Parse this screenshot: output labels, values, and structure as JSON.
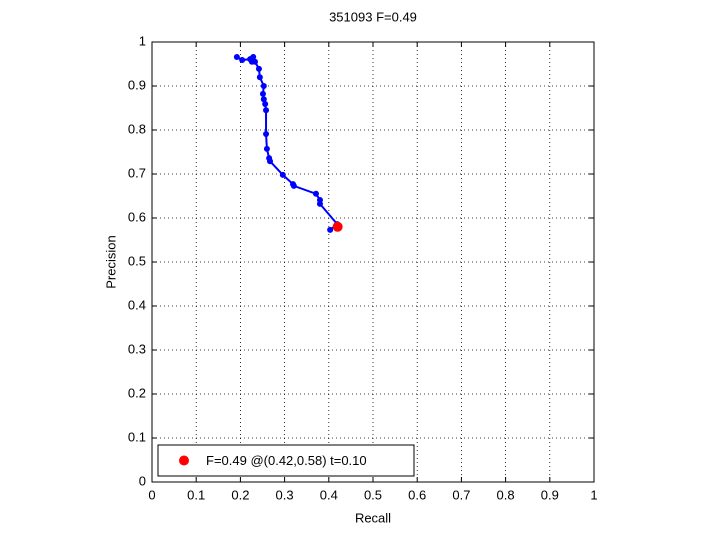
{
  "chart_data": {
    "type": "line",
    "title": "351093 F=0.49",
    "xlabel": "Recall",
    "ylabel": "Precision",
    "xlim": [
      0,
      1
    ],
    "ylim": [
      0,
      1
    ],
    "xticks": [
      0,
      0.1,
      0.2,
      0.3,
      0.4,
      0.5,
      0.6,
      0.7,
      0.8,
      0.9,
      1
    ],
    "yticks": [
      0,
      0.1,
      0.2,
      0.3,
      0.4,
      0.5,
      0.6,
      0.7,
      0.8,
      0.9,
      1
    ],
    "grid": true,
    "legend": "lower left",
    "series": [
      {
        "color": "#0000ff",
        "x": [
          0.192,
          0.204,
          0.222,
          0.229,
          0.226,
          0.233,
          0.242,
          0.244,
          0.253,
          0.251,
          0.253,
          0.256,
          0.258,
          0.258,
          0.26,
          0.265,
          0.267,
          0.296,
          0.319,
          0.321,
          0.371,
          0.38,
          0.38,
          0.419,
          0.403
        ],
        "values": [
          0.966,
          0.959,
          0.961,
          0.966,
          0.955,
          0.955,
          0.939,
          0.92,
          0.9,
          0.882,
          0.87,
          0.859,
          0.845,
          0.791,
          0.757,
          0.736,
          0.729,
          0.698,
          0.677,
          0.673,
          0.655,
          0.641,
          0.632,
          0.586,
          0.573
        ]
      },
      {
        "name": "F=0.49 @(0.42,0.58) t=0.10",
        "type": "scatter",
        "color": "#ff0000",
        "x": [
          0.42
        ],
        "values": [
          0.58
        ]
      }
    ]
  }
}
